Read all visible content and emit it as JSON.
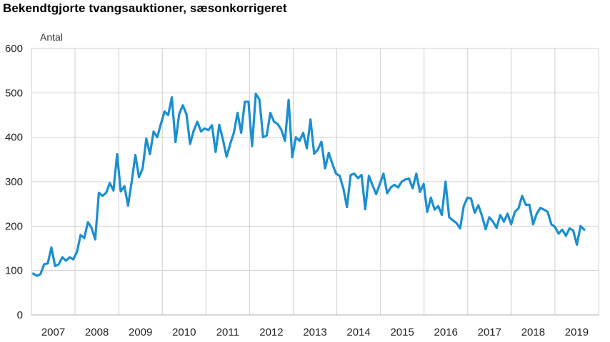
{
  "title": "Bekendtgjorte tvangsauktioner, sæsonkorrigeret",
  "chart_data": {
    "type": "line",
    "title": "Bekendtgjorte tvangsauktioner, sæsonkorrigeret",
    "ylabel": "Antal",
    "xlabel": "",
    "ylim": [
      0,
      600
    ],
    "yticks": [
      0,
      100,
      200,
      300,
      400,
      500,
      600
    ],
    "grid": true,
    "line_color": "#1b8fcf",
    "grid_color": "#d0d0d0",
    "xlim": [
      2006.5,
      2019.5
    ],
    "years": [
      "2007",
      "2008",
      "2009",
      "2010",
      "2011",
      "2012",
      "2013",
      "2014",
      "2015",
      "2016",
      "2017",
      "2018",
      "2019"
    ],
    "series": [
      {
        "values": [
          93,
          88,
          92,
          114,
          116,
          152,
          110,
          114,
          130,
          122,
          130,
          125,
          142,
          180,
          173,
          209,
          196,
          170,
          275,
          268,
          275,
          297,
          280,
          362,
          278,
          290,
          246,
          300,
          360,
          310,
          330,
          397,
          362,
          413,
          400,
          430,
          458,
          450,
          490,
          389,
          452,
          472,
          452,
          385,
          415,
          435,
          413,
          420,
          416,
          427,
          367,
          428,
          395,
          356,
          385,
          410,
          455,
          410,
          480,
          480,
          380,
          498,
          485,
          400,
          404,
          455,
          435,
          430,
          417,
          392,
          484,
          355,
          400,
          392,
          410,
          375,
          440,
          363,
          372,
          390,
          330,
          365,
          340,
          318,
          313,
          285,
          243,
          315,
          318,
          308,
          315,
          238,
          313,
          292,
          272,
          295,
          318,
          274,
          287,
          293,
          287,
          300,
          305,
          307,
          285,
          318,
          277,
          295,
          232,
          264,
          237,
          245,
          225,
          300,
          220,
          213,
          207,
          195,
          245,
          264,
          262,
          230,
          247,
          223,
          193,
          220,
          210,
          196,
          225,
          210,
          228,
          204,
          232,
          240,
          268,
          248,
          248,
          204,
          228,
          241,
          237,
          232,
          204,
          198,
          183,
          192,
          178,
          195,
          190,
          158,
          200,
          192
        ]
      }
    ]
  }
}
